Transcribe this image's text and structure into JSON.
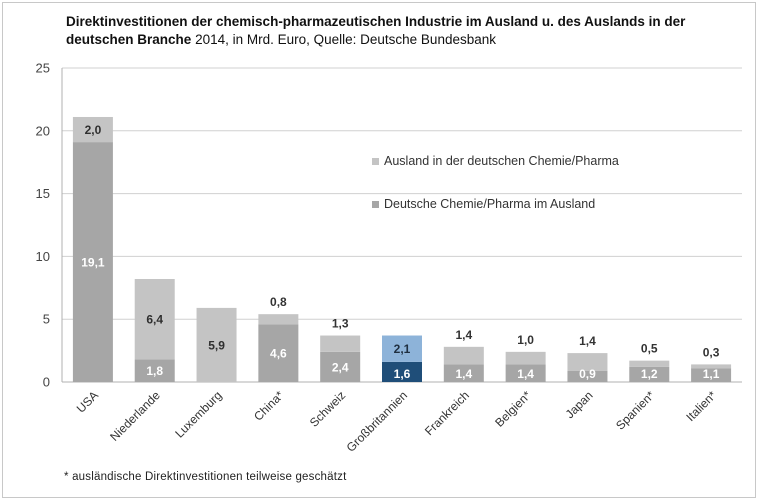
{
  "chart_data": {
    "type": "bar",
    "stacked": true,
    "title_bold": "Direktinvestitionen der chemisch-pharmazeutischen Industrie im Ausland u. des Auslands in der deutschen Branche",
    "title_rest": "2014, in Mrd. Euro, Quelle:  Deutsche Bundesbank",
    "footnote": "* ausländische Direktinvestitionen  teilweise  geschätzt",
    "ylim": [
      0,
      25
    ],
    "yticks": [
      0,
      5,
      10,
      15,
      20,
      25
    ],
    "grid": true,
    "legend_position": "right-center",
    "categories": [
      "USA",
      "Niederlande",
      "Luxemburg",
      "China*",
      "Schweiz",
      "Großbritannien",
      "Frankreich",
      "Belgien*",
      "Japan",
      "Spanien*",
      "Italien*"
    ],
    "series": [
      {
        "name": "Deutsche Chemie/Pharma im Ausland",
        "color": "#a6a6a6",
        "values": [
          19.1,
          1.8,
          0,
          4.6,
          2.4,
          1.6,
          1.4,
          1.4,
          0.9,
          1.2,
          1.1
        ],
        "labels": [
          "19,1",
          "1,8",
          "",
          "4,6",
          "2,4",
          "1,6",
          "1,4",
          "1,4",
          "0,9",
          "1,2",
          "1,1"
        ]
      },
      {
        "name": "Ausland in der deutschen Chemie/Pharma",
        "color": "#c4c4c4",
        "values": [
          2.0,
          6.4,
          5.9,
          0.8,
          1.3,
          2.1,
          1.4,
          1.0,
          1.4,
          0.5,
          0.3
        ],
        "labels": [
          "2,0",
          "6,4",
          "5,9",
          "0,8",
          "1,3",
          "2,1",
          "1,4",
          "1,0",
          "1,4",
          "0,5",
          "0,3"
        ]
      }
    ],
    "highlight": {
      "category_index": 5,
      "colors": [
        "#1f4e79",
        "#8db3d9"
      ]
    },
    "label_colors": {
      "inside": "#ffffff",
      "inside_small": "#2f2f2f",
      "above": "#333333"
    }
  }
}
